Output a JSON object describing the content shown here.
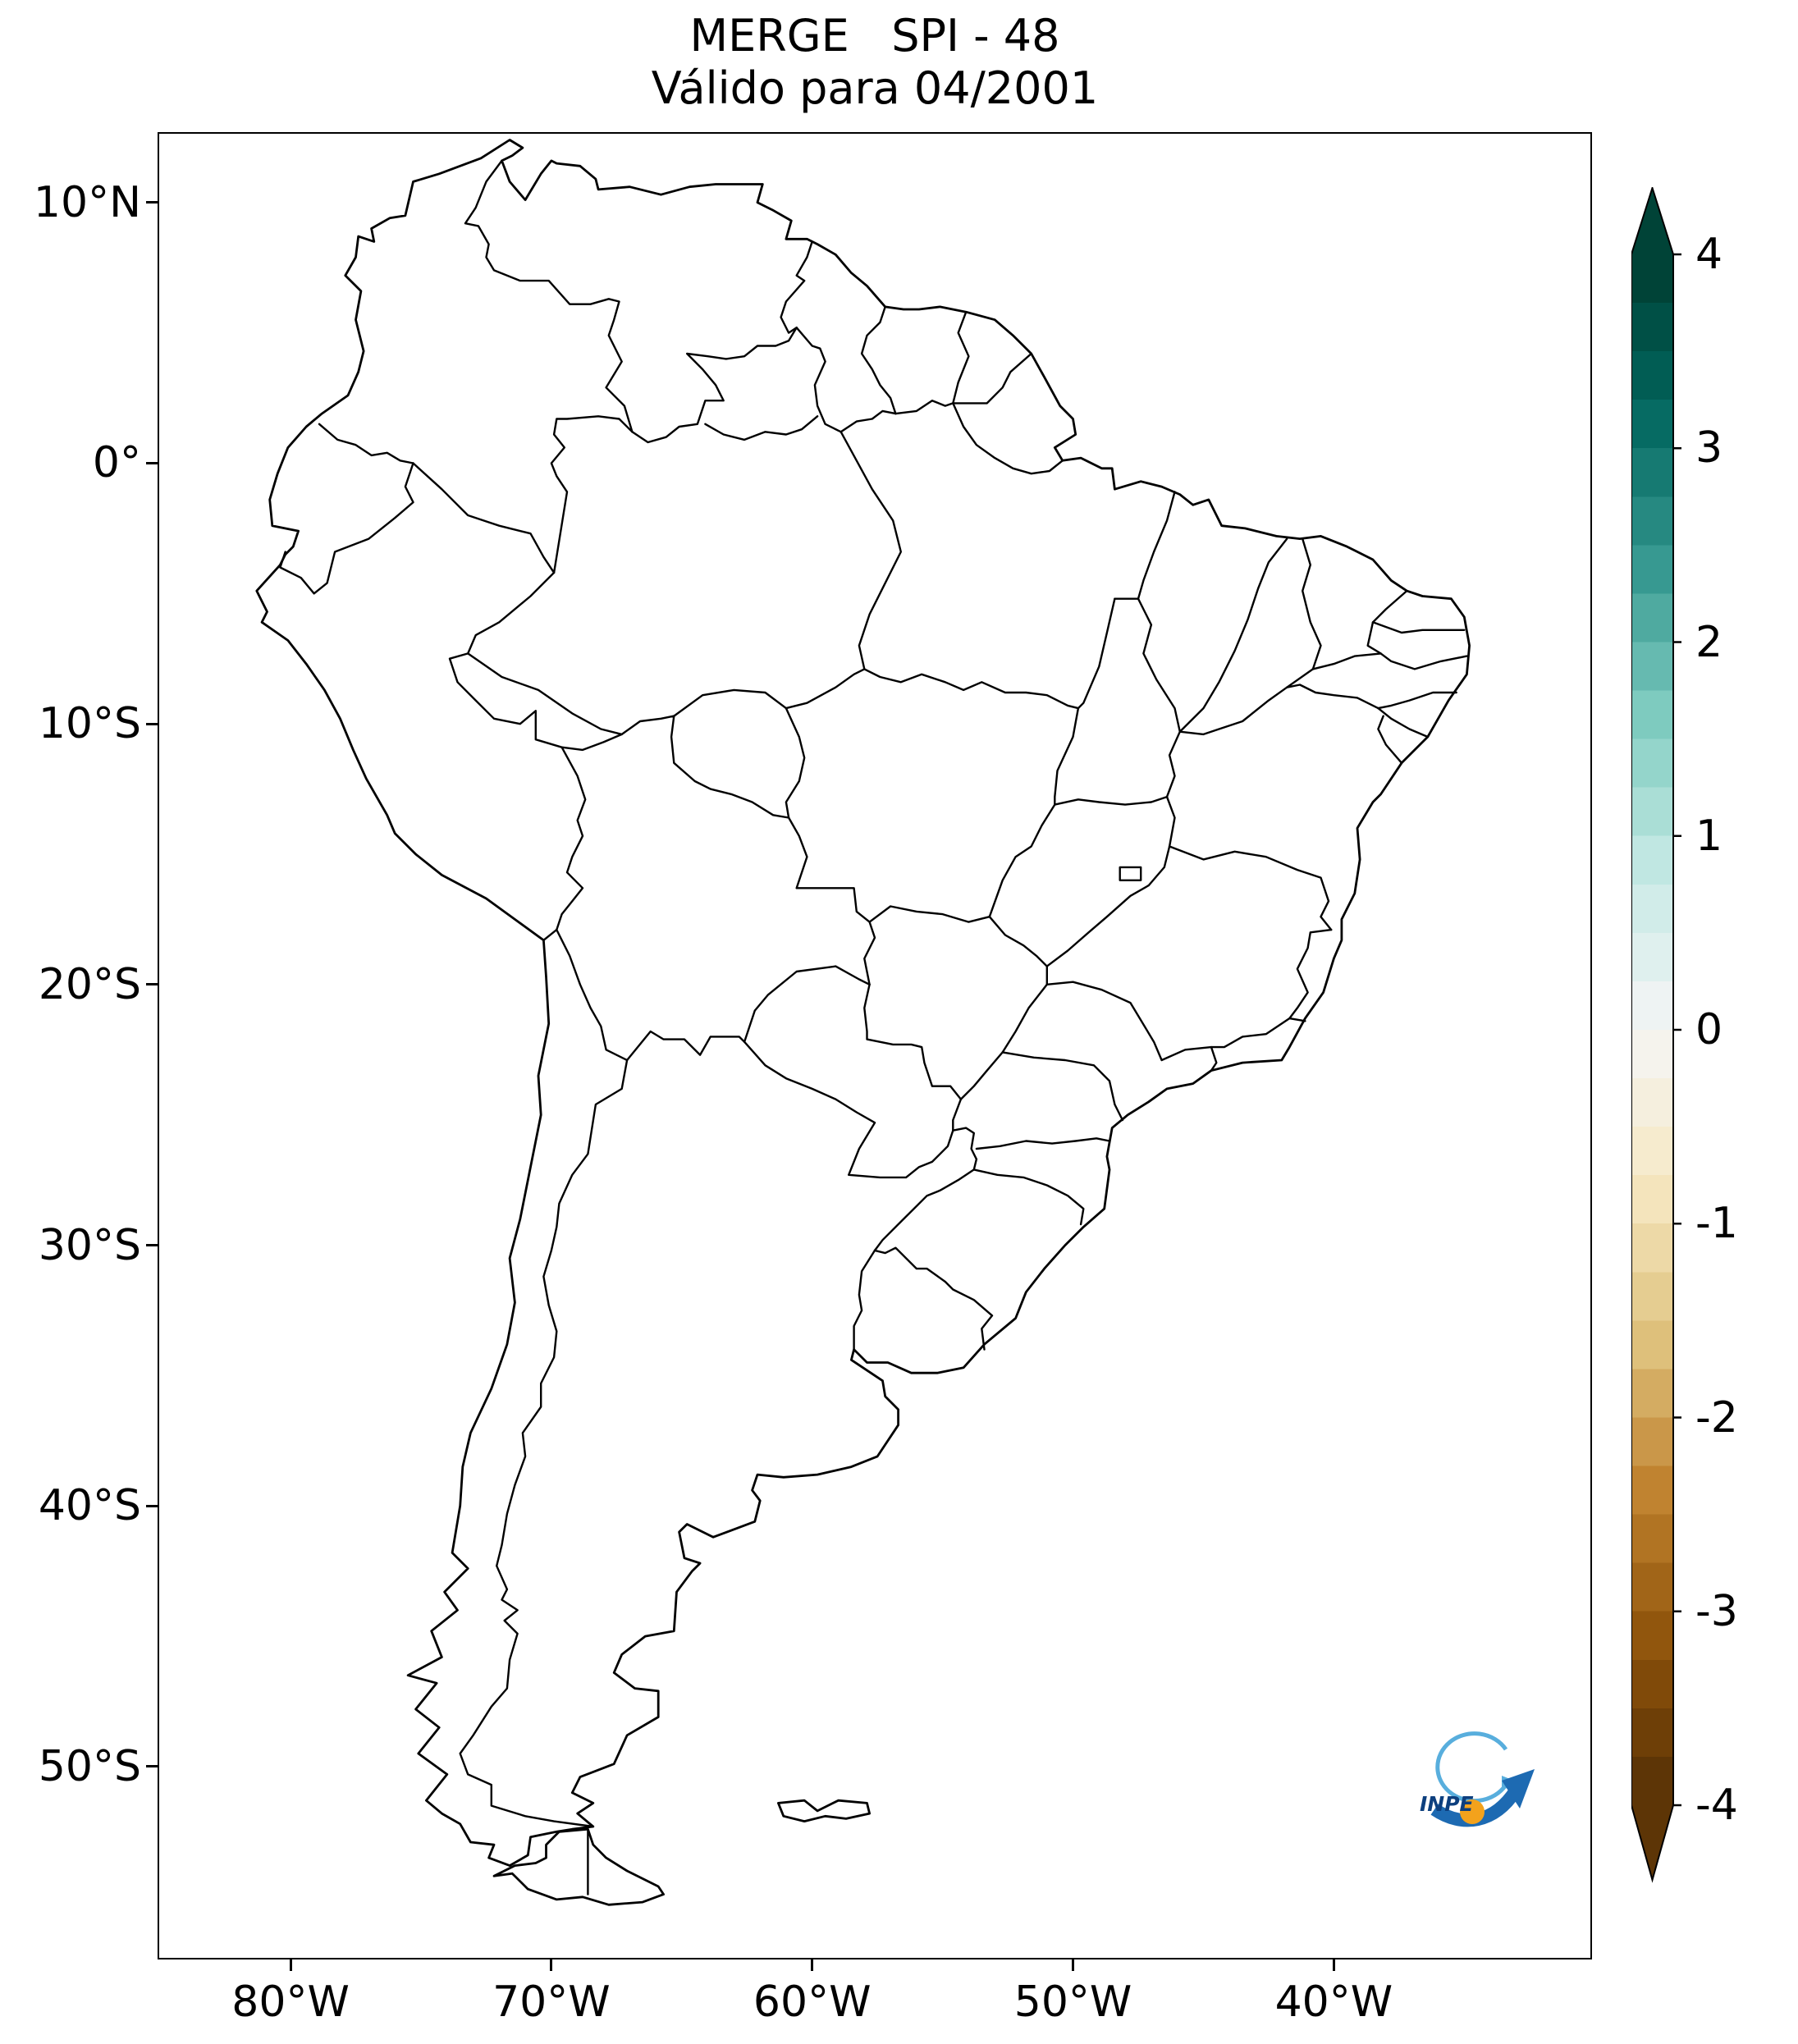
{
  "figure": {
    "title": "MERGE   SPI - 48",
    "subtitle": "Válido para 04/2001"
  },
  "axes": {
    "x_ticks": [
      {
        "label": "80°W",
        "lon": -80
      },
      {
        "label": "70°W",
        "lon": -70
      },
      {
        "label": "60°W",
        "lon": -60
      },
      {
        "label": "50°W",
        "lon": -50
      },
      {
        "label": "40°W",
        "lon": -40
      }
    ],
    "y_ticks": [
      {
        "label": "10°N",
        "lat": 10
      },
      {
        "label": "0°",
        "lat": 0
      },
      {
        "label": "10°S",
        "lat": -10
      },
      {
        "label": "20°S",
        "lat": -20
      },
      {
        "label": "30°S",
        "lat": -30
      },
      {
        "label": "40°S",
        "lat": -40
      },
      {
        "label": "50°S",
        "lat": -50
      }
    ]
  },
  "colorbar": {
    "vmin": -4,
    "vmax": 4,
    "segments": 32,
    "ticks": [
      {
        "label": "4",
        "value": 4
      },
      {
        "label": "3",
        "value": 3
      },
      {
        "label": "2",
        "value": 2
      },
      {
        "label": "1",
        "value": 1
      },
      {
        "label": "0",
        "value": 0
      },
      {
        "label": "-1",
        "value": -1
      },
      {
        "label": "-2",
        "value": -2
      },
      {
        "label": "-3",
        "value": -3
      },
      {
        "label": "-4",
        "value": -4
      }
    ],
    "anchors": [
      "#543005",
      "#8c510a",
      "#bf812d",
      "#dfc27d",
      "#f6e8c3",
      "#f5f5f5",
      "#c7eae5",
      "#80cdc1",
      "#35978f",
      "#01665e",
      "#003c30"
    ]
  },
  "logo": {
    "text": "INPE",
    "dark_blue": "#1d6ab2",
    "light_blue": "#58aedd",
    "orange": "#f3a21c",
    "text_color": "#0d3f7e"
  },
  "chart_data": {
    "type": "map",
    "title": "MERGE   SPI - 48",
    "subtitle": "Válido para 04/2001",
    "region": "South America with country and Brazilian state boundaries",
    "x_tick_labels": [
      "80°W",
      "70°W",
      "60°W",
      "50°W",
      "40°W"
    ],
    "y_tick_labels": [
      "10°N",
      "0°",
      "10°S",
      "20°S",
      "30°S",
      "40°S",
      "50°S"
    ],
    "lon_range": [
      -85.1,
      -30.1
    ],
    "lat_range": [
      -57.4,
      12.7
    ],
    "colorbar": {
      "colormap": "BrBG",
      "range": [
        -4,
        4
      ],
      "ticks": [
        4,
        3,
        2,
        1,
        0,
        -1,
        -2,
        -3,
        -4
      ],
      "extend": "both"
    },
    "values_plotted": "no colored field visible; map interior is blank/white"
  }
}
